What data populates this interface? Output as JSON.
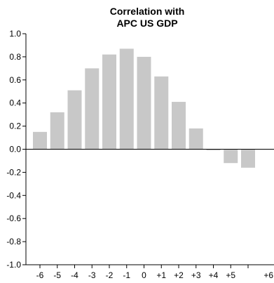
{
  "chart_data": {
    "type": "bar",
    "title": [
      "Correlation with",
      "APC US GDP"
    ],
    "xlabel": "",
    "ylabel": "",
    "categories": [
      "-6",
      "-5",
      "-4",
      "-3",
      "-2",
      "-1",
      "0",
      "+1",
      "+2",
      "+3",
      "+4",
      "+5",
      "+6"
    ],
    "values": [
      0.15,
      0.32,
      0.51,
      0.7,
      0.82,
      0.87,
      0.8,
      0.63,
      0.41,
      0.18,
      -0.01,
      -0.12,
      -0.16
    ],
    "ylim": [
      -1.0,
      1.0
    ],
    "yticks": [
      1.0,
      0.8,
      0.6,
      0.4,
      0.2,
      0.0,
      -0.2,
      -0.4,
      -0.6,
      -0.8,
      -1.0
    ],
    "ytick_labels": [
      "1.0",
      "0.8",
      "0.6",
      "0.4",
      "0.2",
      "0.0",
      "-0.2",
      "-0.4",
      "-0.6",
      "-0.8",
      "-1.0"
    ],
    "grid": false,
    "legend": "none",
    "colors": {
      "bar": "#c8c8c8",
      "axis": "#000000",
      "zero_line": "#000000"
    }
  }
}
